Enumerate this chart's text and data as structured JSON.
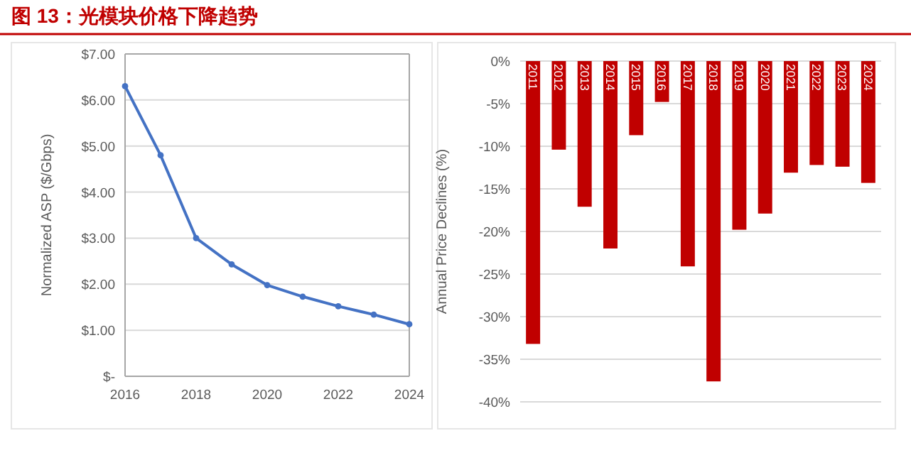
{
  "chart_data": [
    {
      "type": "line",
      "title": "图 13：光模块价格下降趋势",
      "ylabel": "Normalized ASP ($/Gbps)",
      "x": [
        2016,
        2017,
        2018,
        2019,
        2020,
        2021,
        2022,
        2023,
        2024
      ],
      "values": [
        6.3,
        4.8,
        3.0,
        2.43,
        1.98,
        1.73,
        1.52,
        1.34,
        1.13
      ],
      "color": "#4472c4",
      "marker": "circle",
      "grid": "y",
      "xlim": [
        2016,
        2024
      ],
      "xticks": [
        2016,
        2018,
        2020,
        2022,
        2024
      ],
      "ylim": [
        0,
        7
      ],
      "yticks": [
        {
          "value": 0,
          "label": "$-"
        },
        {
          "value": 1,
          "label": "$1.00"
        },
        {
          "value": 2,
          "label": "$2.00"
        },
        {
          "value": 3,
          "label": "$3.00"
        },
        {
          "value": 4,
          "label": "$4.00"
        },
        {
          "value": 5,
          "label": "$5.00"
        },
        {
          "value": 6,
          "label": "$6.00"
        },
        {
          "value": 7,
          "label": "$7.00"
        }
      ]
    },
    {
      "type": "bar",
      "ylabel": "Annual Price Declines (%)",
      "categories": [
        "2011",
        "2012",
        "2013",
        "2014",
        "2015",
        "2016",
        "2017",
        "2018",
        "2019",
        "2020",
        "2021",
        "2022",
        "2023",
        "2024"
      ],
      "values": [
        -33.2,
        -10.4,
        -17.1,
        -22,
        -8.7,
        -4.8,
        -24.1,
        -37.6,
        -19.8,
        -17.9,
        -13.1,
        -12.2,
        -12.4,
        -14.3
      ],
      "color": "#c00000",
      "grid": "y",
      "ylim": [
        -40,
        0
      ],
      "yticks": [
        {
          "value": 0,
          "label": "0%"
        },
        {
          "value": -5,
          "label": "-5%"
        },
        {
          "value": -10,
          "label": "-10%"
        },
        {
          "value": -15,
          "label": "-15%"
        },
        {
          "value": -20,
          "label": "-20%"
        },
        {
          "value": -25,
          "label": "-25%"
        },
        {
          "value": -30,
          "label": "-30%"
        },
        {
          "value": -35,
          "label": "-35%"
        },
        {
          "value": -40,
          "label": "-40%"
        }
      ]
    }
  ]
}
